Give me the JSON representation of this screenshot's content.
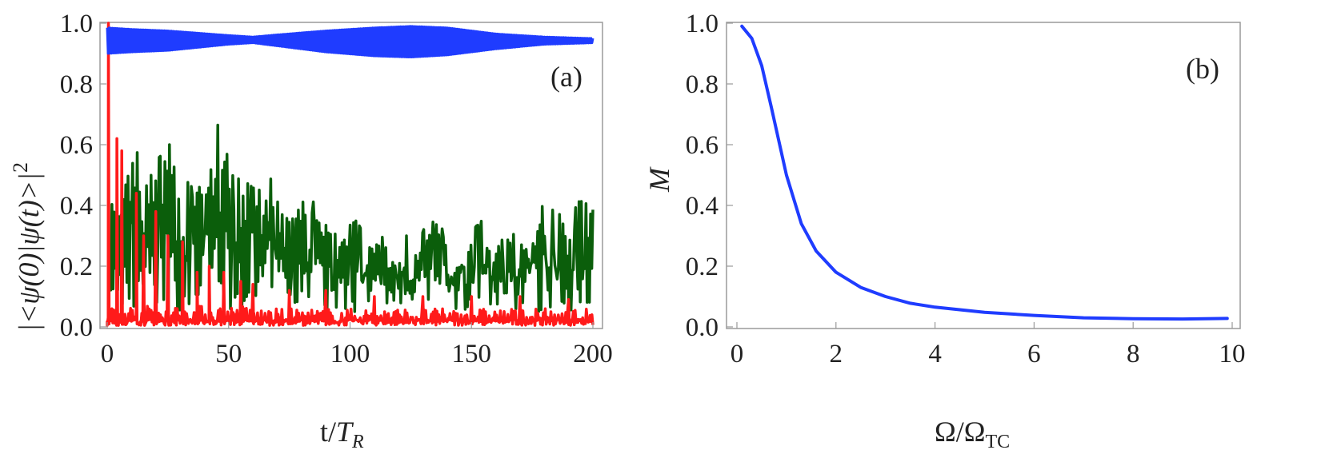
{
  "chart_data": [
    {
      "type": "line",
      "panel_label": "(a)",
      "xlabel_prefix": "t/",
      "xlabel_var": "T",
      "xlabel_sub": "R",
      "ylabel": "|<ψ(0)|ψ(t)>|",
      "ylabel_sup": "2",
      "xlim": [
        0,
        200
      ],
      "ylim": [
        0,
        1.0
      ],
      "xticks": [
        "0",
        "50",
        "100",
        "150",
        "200"
      ],
      "yticks": [
        "0.0",
        "0.2",
        "0.4",
        "0.6",
        "0.8",
        "1.0"
      ],
      "series": [
        {
          "name": "blue",
          "color": "#1f3cff",
          "envelope_x": [
            0,
            10,
            25,
            50,
            60,
            70,
            90,
            110,
            125,
            140,
            160,
            180,
            200
          ],
          "upper": [
            0.985,
            0.98,
            0.975,
            0.96,
            0.955,
            0.962,
            0.975,
            0.985,
            0.99,
            0.985,
            0.965,
            0.955,
            0.95
          ],
          "lower": [
            0.9,
            0.905,
            0.91,
            0.93,
            0.935,
            0.925,
            0.905,
            0.892,
            0.888,
            0.895,
            0.915,
            0.93,
            0.935
          ]
        },
        {
          "name": "green",
          "color": "#0b5e0b",
          "x_max": 200,
          "peak_values": [
            0.55,
            0.35,
            0.64,
            0.48,
            0.55,
            0.6,
            0.5,
            0.45,
            0.55,
            0.68,
            0.5,
            0.48,
            0.45,
            0.5,
            0.4,
            0.35,
            0.45,
            0.38,
            0.3,
            0.32,
            0.35,
            0.28,
            0.3,
            0.25,
            0.3,
            0.3,
            0.35,
            0.32,
            0.28,
            0.3,
            0.35,
            0.3,
            0.28,
            0.32,
            0.35,
            0.4,
            0.38,
            0.35,
            0.42,
            0.42
          ]
        },
        {
          "name": "red",
          "color": "#ff1a1a",
          "x_max": 200,
          "spikes": [
            [
              0.5,
              1.0
            ],
            [
              4,
              0.62
            ],
            [
              6,
              0.58
            ],
            [
              12,
              0.44
            ],
            [
              15,
              0.3
            ],
            [
              20,
              0.38
            ],
            [
              25,
              0.3
            ],
            [
              31,
              0.28
            ],
            [
              37,
              0.18
            ],
            [
              42,
              0.2
            ],
            [
              48,
              0.18
            ],
            [
              55,
              0.15
            ],
            [
              60,
              0.14
            ],
            [
              75,
              0.12
            ],
            [
              90,
              0.12
            ],
            [
              110,
              0.1
            ],
            [
              130,
              0.1
            ],
            [
              150,
              0.1
            ],
            [
              170,
              0.1
            ],
            [
              190,
              0.09
            ]
          ]
        }
      ]
    },
    {
      "type": "line",
      "panel_label": "(b)",
      "xlabel": "Ω/Ω",
      "xlabel_sub": "TC",
      "ylabel": "M",
      "xlim": [
        0,
        10
      ],
      "ylim": [
        0,
        1.0
      ],
      "xticks": [
        "0",
        "2",
        "4",
        "6",
        "8",
        "10"
      ],
      "yticks": [
        "0.0",
        "0.2",
        "0.4",
        "0.6",
        "0.8",
        "1.0"
      ],
      "series": [
        {
          "name": "M",
          "color": "#1f3cff",
          "x": [
            0.1,
            0.3,
            0.5,
            0.7,
            1.0,
            1.3,
            1.6,
            2.0,
            2.5,
            3.0,
            3.5,
            4.0,
            5.0,
            6.0,
            7.0,
            8.0,
            9.0,
            9.9
          ],
          "y": [
            0.99,
            0.95,
            0.86,
            0.72,
            0.5,
            0.34,
            0.25,
            0.18,
            0.13,
            0.1,
            0.078,
            0.065,
            0.048,
            0.038,
            0.03,
            0.027,
            0.026,
            0.028
          ]
        }
      ]
    }
  ]
}
